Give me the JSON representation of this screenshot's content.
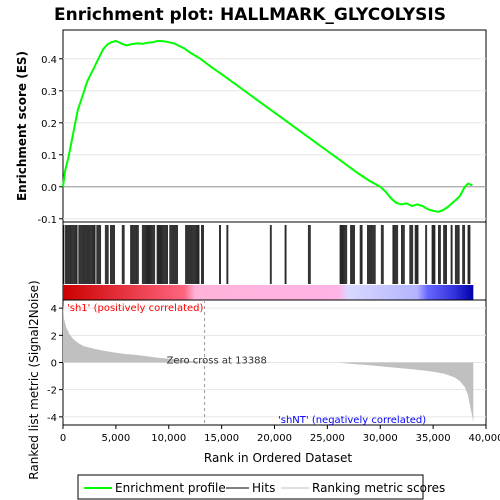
{
  "chart_data": {
    "type": "line",
    "title": "Enrichment plot: HALLMARK_GLYCOLYSIS",
    "xlabel": "Rank in Ordered Dataset",
    "xlim": [
      0,
      40000
    ],
    "x_ticks": [
      0,
      5000,
      10000,
      15000,
      20000,
      25000,
      30000,
      35000,
      40000
    ],
    "x_tick_labels": [
      "0",
      "5,000",
      "10,000",
      "15,000",
      "20,000",
      "25,000",
      "30,000",
      "35,000",
      "40,000"
    ],
    "es_panel": {
      "ylabel": "Enrichment score (ES)",
      "ylim": [
        -0.11,
        0.49
      ],
      "y_ticks": [
        -0.1,
        0.0,
        0.1,
        0.2,
        0.3,
        0.4
      ],
      "y_tick_labels": [
        "-0.1",
        "0.0",
        "0.1",
        "0.2",
        "0.3",
        "0.4"
      ],
      "series": [
        {
          "name": "Enrichment profile",
          "color": "#00ff00",
          "x": [
            0,
            200,
            500,
            800,
            1100,
            1400,
            1700,
            2000,
            2300,
            2600,
            2900,
            3200,
            3500,
            3800,
            4200,
            4600,
            5000,
            5500,
            6000,
            6500,
            7000,
            7500,
            8000,
            8500,
            9000,
            9500,
            10000,
            10500,
            11000,
            11500,
            12000,
            12500,
            13000,
            14000,
            15000,
            16000,
            17000,
            18000,
            19000,
            20000,
            21000,
            22000,
            23000,
            24000,
            25000,
            26000,
            27000,
            28000,
            29000,
            30000,
            30500,
            31000,
            31500,
            32000,
            32500,
            33000,
            33500,
            34000,
            34500,
            35000,
            35500,
            36000,
            36500,
            37000,
            37500,
            38000,
            38300,
            38700
          ],
          "y": [
            0.0,
            0.05,
            0.09,
            0.14,
            0.19,
            0.24,
            0.27,
            0.3,
            0.33,
            0.35,
            0.37,
            0.39,
            0.41,
            0.43,
            0.445,
            0.452,
            0.456,
            0.448,
            0.442,
            0.446,
            0.448,
            0.447,
            0.45,
            0.452,
            0.456,
            0.455,
            0.452,
            0.448,
            0.44,
            0.432,
            0.42,
            0.41,
            0.4,
            0.375,
            0.352,
            0.328,
            0.304,
            0.28,
            0.256,
            0.232,
            0.208,
            0.184,
            0.16,
            0.136,
            0.112,
            0.088,
            0.064,
            0.04,
            0.018,
            0.0,
            -0.015,
            -0.035,
            -0.05,
            -0.055,
            -0.052,
            -0.06,
            -0.055,
            -0.06,
            -0.07,
            -0.075,
            -0.078,
            -0.072,
            -0.06,
            -0.045,
            -0.03,
            0.0,
            0.01,
            0.005
          ]
        }
      ]
    },
    "hits_panel": {
      "label": "Hits",
      "hit_color": "#000000",
      "hit_segments": [
        [
          0,
          100
        ],
        [
          250,
          1400
        ],
        [
          1500,
          3100
        ],
        [
          3200,
          3600
        ],
        [
          4000,
          4300
        ],
        [
          4500,
          4900
        ],
        [
          5600,
          5800
        ],
        [
          6400,
          7200
        ],
        [
          7500,
          8700
        ],
        [
          8900,
          9900
        ],
        [
          10100,
          10900
        ],
        [
          11600,
          12900
        ],
        [
          13100,
          13350
        ],
        [
          14800,
          14900
        ],
        [
          15500,
          15600
        ],
        [
          19600,
          19700
        ],
        [
          21000,
          21100
        ],
        [
          23200,
          23400
        ],
        [
          26200,
          26900
        ],
        [
          27200,
          27600
        ],
        [
          28100,
          28300
        ],
        [
          28800,
          29600
        ],
        [
          30100,
          30300
        ],
        [
          31200,
          31700
        ],
        [
          32000,
          32300
        ],
        [
          32800,
          33100
        ],
        [
          33300,
          33600
        ],
        [
          34300,
          34400
        ],
        [
          34900,
          35200
        ],
        [
          35500,
          35700
        ],
        [
          36000,
          36300
        ],
        [
          36700,
          36800
        ],
        [
          37100,
          37500
        ],
        [
          37800,
          38000
        ],
        [
          38300,
          38500
        ]
      ],
      "color_bar_stops": [
        {
          "rank": 0,
          "color": "#cc0000"
        },
        {
          "rank": 11500,
          "color": "#ff6680"
        },
        {
          "rank": 12500,
          "color": "#ffb3d9"
        },
        {
          "rank": 26000,
          "color": "#ffb3e6"
        },
        {
          "rank": 27000,
          "color": "#d9d9ff"
        },
        {
          "rank": 33500,
          "color": "#b3b3ff"
        },
        {
          "rank": 34500,
          "color": "#6666ff"
        },
        {
          "rank": 37000,
          "color": "#3333dd"
        },
        {
          "rank": 38800,
          "color": "#0000aa"
        }
      ]
    },
    "ranking_panel": {
      "ylabel": "Ranked list metric (Signal2Noise)",
      "ylim": [
        -4.6,
        4.6
      ],
      "y_ticks": [
        -4,
        -2,
        0,
        2,
        4
      ],
      "y_tick_labels": [
        "-4",
        "-2",
        "0",
        "2",
        "4"
      ],
      "series_name": "Ranking metric scores",
      "color": "#c0c0c0",
      "x": [
        0,
        100,
        300,
        600,
        1000,
        1500,
        2000,
        3000,
        4000,
        5000,
        6000,
        7000,
        8000,
        9000,
        10000,
        11000,
        12000,
        13000,
        13388,
        15000,
        18000,
        21000,
        24000,
        26000,
        27000,
        28000,
        29000,
        30000,
        31000,
        32000,
        33000,
        34000,
        35000,
        36000,
        36500,
        37000,
        37500,
        38000,
        38300,
        38500,
        38700,
        38800
      ],
      "y": [
        4.3,
        3.2,
        2.6,
        2.1,
        1.7,
        1.4,
        1.2,
        1.0,
        0.85,
        0.72,
        0.62,
        0.55,
        0.45,
        0.35,
        0.27,
        0.2,
        0.12,
        0.05,
        0.0,
        0.0,
        0.0,
        0.0,
        0.0,
        0.0,
        -0.08,
        -0.15,
        -0.2,
        -0.28,
        -0.35,
        -0.42,
        -0.5,
        -0.58,
        -0.68,
        -0.82,
        -0.95,
        -1.1,
        -1.35,
        -1.8,
        -2.4,
        -3.2,
        -4.0,
        -4.4
      ],
      "zero_cross_label": "Zero cross at 13388",
      "zero_cross_rank": 13388,
      "pos_label": "'sh1' (positively correlated)",
      "pos_color": "#ff0000",
      "neg_label": "'shNT' (negatively correlated)",
      "neg_color": "#0000ff"
    },
    "legend": {
      "placement": "bottom",
      "entries": [
        {
          "label": "Enrichment profile",
          "color": "#00ff00"
        },
        {
          "label": "Hits",
          "color": "#000000"
        },
        {
          "label": "Ranking metric scores",
          "color": "#c0c0c0"
        }
      ]
    }
  }
}
